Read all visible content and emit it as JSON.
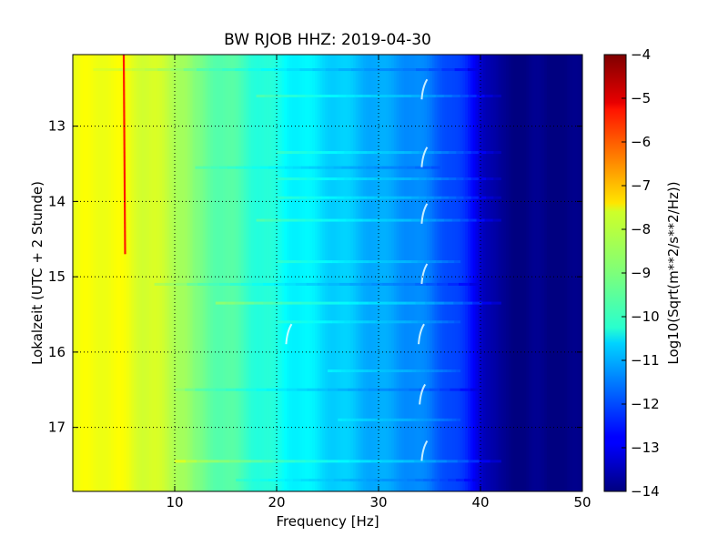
{
  "chart_data": {
    "type": "heatmap",
    "title": "BW RJOB HHZ: 2019-04-30",
    "xlabel": "Frequency [Hz]",
    "ylabel": "Lokalzeit (UTC + 2 Stunde)",
    "xlim": [
      0,
      50
    ],
    "ylim": [
      17.85,
      12.05
    ],
    "y_axis_inverted": true,
    "x_ticks": [
      10,
      20,
      30,
      40,
      50
    ],
    "x_tick_labels": [
      "10",
      "20",
      "30",
      "40",
      "50"
    ],
    "y_ticks": [
      13,
      14,
      15,
      16,
      17
    ],
    "y_tick_labels": [
      "13",
      "14",
      "15",
      "16",
      "17"
    ],
    "grid": true,
    "colormap": "jet",
    "colorbar": {
      "label": "Log10(Sqrt(m**2/s**2/Hz))",
      "range": [
        -14,
        -4
      ],
      "ticks": [
        -4,
        -5,
        -6,
        -7,
        -8,
        -9,
        -10,
        -11,
        -12,
        -13,
        -14
      ],
      "tick_labels": [
        "−4",
        "−5",
        "−6",
        "−7",
        "−8",
        "−9",
        "−10",
        "−11",
        "−12",
        "−13",
        "−14"
      ]
    },
    "spectral_profile": {
      "frequency_hz": [
        0,
        1,
        3,
        5,
        8,
        11,
        12,
        15,
        18,
        21,
        24,
        27,
        30,
        33,
        35,
        37,
        38.5,
        39.5,
        40.5,
        42,
        50
      ],
      "log10_amplitude": [
        -8.0,
        -7.9,
        -7.8,
        -7.9,
        -8.2,
        -8.6,
        -9.1,
        -9.4,
        -9.8,
        -10.2,
        -10.5,
        -10.8,
        -11.1,
        -11.3,
        -11.6,
        -12.0,
        -12.4,
        -12.8,
        -13.4,
        -13.9,
        -14.0
      ]
    },
    "persistent_line": {
      "frequency_hz": 5,
      "time_start": 12.05,
      "time_end": 14.7,
      "log10_amplitude": -5.5
    },
    "broadband_lines": [
      {
        "time": 12.25,
        "f_start": 2,
        "f_end": 40,
        "delta": -0.3
      },
      {
        "time": 12.6,
        "f_start": 18,
        "f_end": 42,
        "delta": 0.4
      },
      {
        "time": 13.35,
        "f_start": 20,
        "f_end": 42,
        "delta": 0.4
      },
      {
        "time": 13.55,
        "f_start": 12,
        "f_end": 36,
        "delta": -0.3
      },
      {
        "time": 13.7,
        "f_start": 20,
        "f_end": 42,
        "delta": 0.35
      },
      {
        "time": 13.95,
        "f_start": 20,
        "f_end": 42,
        "delta": 0.35
      },
      {
        "time": 14.25,
        "f_start": 18,
        "f_end": 42,
        "delta": 0.45
      },
      {
        "time": 14.8,
        "f_start": 20,
        "f_end": 38,
        "delta": 0.35
      },
      {
        "time": 15.1,
        "f_start": 8,
        "f_end": 40,
        "delta": -0.3
      },
      {
        "time": 15.35,
        "f_start": 14,
        "f_end": 42,
        "delta": 0.55
      },
      {
        "time": 15.6,
        "f_start": 20,
        "f_end": 38,
        "delta": 0.3
      },
      {
        "time": 16.25,
        "f_start": 25,
        "f_end": 38,
        "delta": 0.3
      },
      {
        "time": 16.5,
        "f_start": 10,
        "f_end": 40,
        "delta": -0.3
      },
      {
        "time": 16.9,
        "f_start": 26,
        "f_end": 38,
        "delta": 0.3
      },
      {
        "time": 17.45,
        "f_start": 10,
        "f_end": 42,
        "delta": 0.5
      },
      {
        "time": 17.7,
        "f_start": 16,
        "f_end": 40,
        "delta": -0.2
      }
    ],
    "transient_events": [
      {
        "frequency_hz": 34.5,
        "time": 12.5
      },
      {
        "frequency_hz": 34.5,
        "time": 13.4
      },
      {
        "frequency_hz": 34.5,
        "time": 14.15
      },
      {
        "frequency_hz": 34.5,
        "time": 14.95
      },
      {
        "frequency_hz": 34.2,
        "time": 15.75
      },
      {
        "frequency_hz": 21.2,
        "time": 15.75
      },
      {
        "frequency_hz": 34.3,
        "time": 16.55
      },
      {
        "frequency_hz": 34.5,
        "time": 17.3
      }
    ]
  }
}
